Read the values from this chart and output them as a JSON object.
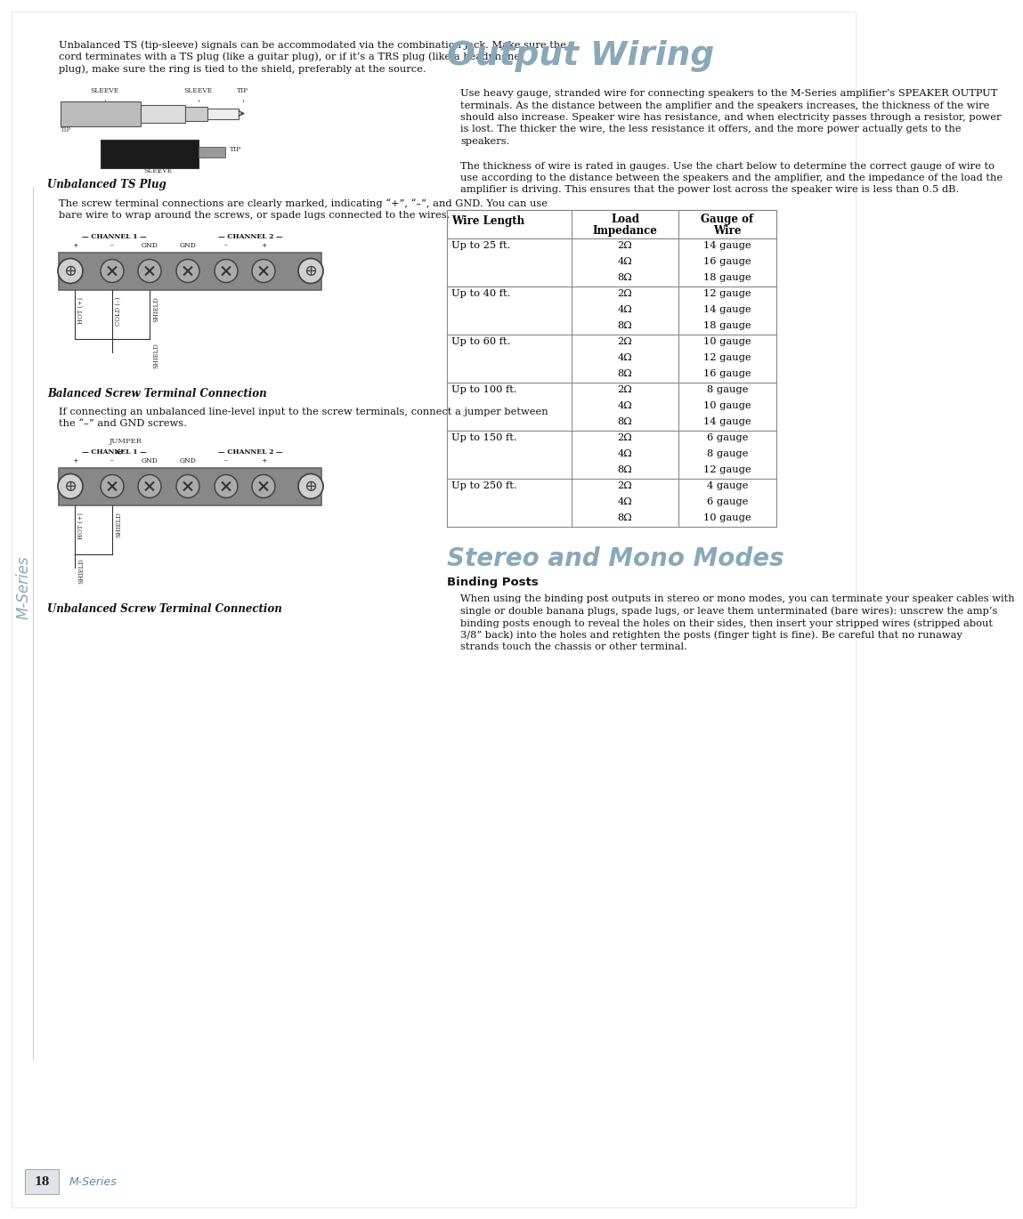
{
  "bg_color": "#ffffff",
  "title_output_wiring": "Output Wiring",
  "title_stereo_mono": "Stereo and Mono Modes",
  "title_color": "#8aa8b8",
  "mseries_color": "#8aa8b8",
  "page_number": "18",
  "footer_mseries": "M-Series",
  "footer_color": "#6688aa",
  "left_para1": "Unbalanced TS (tip-sleeve) signals can be accommodated via the combination jack. Make sure the cord terminates with a TS plug (like a guitar plug), or if it’s a TRS plug (like a headphone plug), make sure the ring is tied to the shield, preferably at the source.",
  "caption_ts_plug": "Unbalanced TS Plug",
  "left_para2": "The screw terminal connections are clearly marked, indicating “+”, “–”, and GND. You can use bare wire to wrap around the screws, or spade lugs connected to the wires.",
  "caption_balanced": "Balanced Screw Terminal Connection",
  "left_para3": "If connecting an unbalanced line-level input to the screw terminals, connect a jumper between the “–” and GND screws.",
  "caption_unbalanced": "Unbalanced Screw Terminal Connection",
  "right_para1": "Use heavy gauge, stranded wire for connecting speakers to the M-Series amplifier’s SPEAKER OUTPUT terminals. As the distance between the amplifier and the speakers increases, the thickness of the wire should also increase. Speaker wire has resistance, and when electricity passes through a resistor, power is lost. The thicker the wire, the less resistance it offers, and the more power actually gets to the speakers.",
  "right_para2": "The thickness of wire is rated in gauges. Use the chart below to determine the correct gauge of wire to use according to the distance between the speakers and the amplifier, and the impedance of the load the amplifier is driving. This ensures that the power lost across the speaker wire is less than 0.5 dB.",
  "table_col_headers": [
    "Wire Length",
    "Load\nImpedance",
    "Gauge of\nWire"
  ],
  "table_data": [
    [
      "Up to 25 ft.",
      "2Ω",
      "14 gauge"
    ],
    [
      "",
      "4Ω",
      "16 gauge"
    ],
    [
      "",
      "8Ω",
      "18 gauge"
    ],
    [
      "Up to 40 ft.",
      "2Ω",
      "12 gauge"
    ],
    [
      "",
      "4Ω",
      "14 gauge"
    ],
    [
      "",
      "8Ω",
      "18 gauge"
    ],
    [
      "Up to 60 ft.",
      "2Ω",
      "10 gauge"
    ],
    [
      "",
      "4Ω",
      "12 gauge"
    ],
    [
      "",
      "8Ω",
      "16 gauge"
    ],
    [
      "Up to 100 ft.",
      "2Ω",
      "8 gauge"
    ],
    [
      "",
      "4Ω",
      "10 gauge"
    ],
    [
      "",
      "8Ω",
      "14 gauge"
    ],
    [
      "Up to 150 ft.",
      "2Ω",
      "6 gauge"
    ],
    [
      "",
      "4Ω",
      "8 gauge"
    ],
    [
      "",
      "8Ω",
      "12 gauge"
    ],
    [
      "Up to 250 ft.",
      "2Ω",
      "4 gauge"
    ],
    [
      "",
      "4Ω",
      "6 gauge"
    ],
    [
      "",
      "8Ω",
      "10 gauge"
    ]
  ],
  "binding_posts_header": "Binding Posts",
  "binding_posts_text": "When using the binding post outputs in stereo or mono modes, you can terminate your speaker cables with single or double banana plugs, spade lugs, or leave them unterminated (bare wires): unscrew the amp’s binding posts enough to reveal the holes on their sides, then insert your stripped wires (stripped about 3/8” back) into the holes and retighten the posts (finger tight is fine). Be careful that no runaway strands touch the chassis or other terminal."
}
